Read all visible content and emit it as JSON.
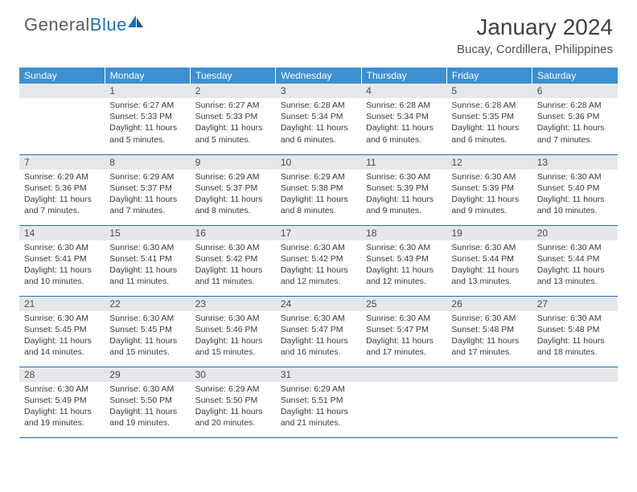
{
  "logo": {
    "word1": "General",
    "word2": "Blue"
  },
  "title": "January 2024",
  "location": "Bucay, Cordillera, Philippines",
  "colors": {
    "header_bg": "#3d8fcf",
    "header_text": "#ffffff",
    "daynum_bg": "#e4e8ea",
    "border": "#2070b8",
    "logo_gray": "#5a5a5a",
    "logo_blue": "#2070b8",
    "body_text": "#3a3a3a"
  },
  "weekdays": [
    "Sunday",
    "Monday",
    "Tuesday",
    "Wednesday",
    "Thursday",
    "Friday",
    "Saturday"
  ],
  "layout": {
    "first_weekday_index": 1,
    "rows": 5,
    "cols": 7
  },
  "days": [
    {
      "n": 1,
      "sunrise": "6:27 AM",
      "sunset": "5:33 PM",
      "daylight": "11 hours and 5 minutes."
    },
    {
      "n": 2,
      "sunrise": "6:27 AM",
      "sunset": "5:33 PM",
      "daylight": "11 hours and 5 minutes."
    },
    {
      "n": 3,
      "sunrise": "6:28 AM",
      "sunset": "5:34 PM",
      "daylight": "11 hours and 6 minutes."
    },
    {
      "n": 4,
      "sunrise": "6:28 AM",
      "sunset": "5:34 PM",
      "daylight": "11 hours and 6 minutes."
    },
    {
      "n": 5,
      "sunrise": "6:28 AM",
      "sunset": "5:35 PM",
      "daylight": "11 hours and 6 minutes."
    },
    {
      "n": 6,
      "sunrise": "6:28 AM",
      "sunset": "5:36 PM",
      "daylight": "11 hours and 7 minutes."
    },
    {
      "n": 7,
      "sunrise": "6:29 AM",
      "sunset": "5:36 PM",
      "daylight": "11 hours and 7 minutes."
    },
    {
      "n": 8,
      "sunrise": "6:29 AM",
      "sunset": "5:37 PM",
      "daylight": "11 hours and 7 minutes."
    },
    {
      "n": 9,
      "sunrise": "6:29 AM",
      "sunset": "5:37 PM",
      "daylight": "11 hours and 8 minutes."
    },
    {
      "n": 10,
      "sunrise": "6:29 AM",
      "sunset": "5:38 PM",
      "daylight": "11 hours and 8 minutes."
    },
    {
      "n": 11,
      "sunrise": "6:30 AM",
      "sunset": "5:39 PM",
      "daylight": "11 hours and 9 minutes."
    },
    {
      "n": 12,
      "sunrise": "6:30 AM",
      "sunset": "5:39 PM",
      "daylight": "11 hours and 9 minutes."
    },
    {
      "n": 13,
      "sunrise": "6:30 AM",
      "sunset": "5:40 PM",
      "daylight": "11 hours and 10 minutes."
    },
    {
      "n": 14,
      "sunrise": "6:30 AM",
      "sunset": "5:41 PM",
      "daylight": "11 hours and 10 minutes."
    },
    {
      "n": 15,
      "sunrise": "6:30 AM",
      "sunset": "5:41 PM",
      "daylight": "11 hours and 11 minutes."
    },
    {
      "n": 16,
      "sunrise": "6:30 AM",
      "sunset": "5:42 PM",
      "daylight": "11 hours and 11 minutes."
    },
    {
      "n": 17,
      "sunrise": "6:30 AM",
      "sunset": "5:42 PM",
      "daylight": "11 hours and 12 minutes."
    },
    {
      "n": 18,
      "sunrise": "6:30 AM",
      "sunset": "5:43 PM",
      "daylight": "11 hours and 12 minutes."
    },
    {
      "n": 19,
      "sunrise": "6:30 AM",
      "sunset": "5:44 PM",
      "daylight": "11 hours and 13 minutes."
    },
    {
      "n": 20,
      "sunrise": "6:30 AM",
      "sunset": "5:44 PM",
      "daylight": "11 hours and 13 minutes."
    },
    {
      "n": 21,
      "sunrise": "6:30 AM",
      "sunset": "5:45 PM",
      "daylight": "11 hours and 14 minutes."
    },
    {
      "n": 22,
      "sunrise": "6:30 AM",
      "sunset": "5:45 PM",
      "daylight": "11 hours and 15 minutes."
    },
    {
      "n": 23,
      "sunrise": "6:30 AM",
      "sunset": "5:46 PM",
      "daylight": "11 hours and 15 minutes."
    },
    {
      "n": 24,
      "sunrise": "6:30 AM",
      "sunset": "5:47 PM",
      "daylight": "11 hours and 16 minutes."
    },
    {
      "n": 25,
      "sunrise": "6:30 AM",
      "sunset": "5:47 PM",
      "daylight": "11 hours and 17 minutes."
    },
    {
      "n": 26,
      "sunrise": "6:30 AM",
      "sunset": "5:48 PM",
      "daylight": "11 hours and 17 minutes."
    },
    {
      "n": 27,
      "sunrise": "6:30 AM",
      "sunset": "5:48 PM",
      "daylight": "11 hours and 18 minutes."
    },
    {
      "n": 28,
      "sunrise": "6:30 AM",
      "sunset": "5:49 PM",
      "daylight": "11 hours and 19 minutes."
    },
    {
      "n": 29,
      "sunrise": "6:30 AM",
      "sunset": "5:50 PM",
      "daylight": "11 hours and 19 minutes."
    },
    {
      "n": 30,
      "sunrise": "6:29 AM",
      "sunset": "5:50 PM",
      "daylight": "11 hours and 20 minutes."
    },
    {
      "n": 31,
      "sunrise": "6:29 AM",
      "sunset": "5:51 PM",
      "daylight": "11 hours and 21 minutes."
    }
  ],
  "labels": {
    "sunrise": "Sunrise:",
    "sunset": "Sunset:",
    "daylight": "Daylight:"
  }
}
